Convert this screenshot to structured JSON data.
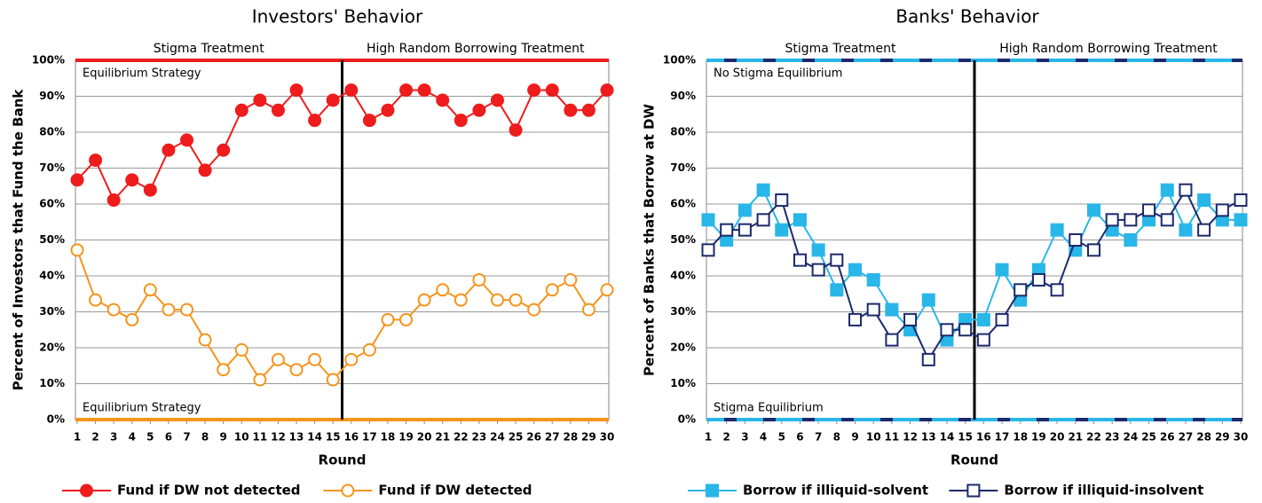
{
  "chart_data": [
    {
      "type": "line",
      "title": "Investors' Behavior",
      "x_label": "Round",
      "y_label": "Percent of Investors that Fund the Bank",
      "treatments": [
        "Stigma Treatment",
        "High Random Borrowing Treatment"
      ],
      "equilibria": [
        {
          "label": "Equilibrium Strategy",
          "value": 100,
          "color": "#ee1c1c"
        },
        {
          "label": "Equilibrium Strategy",
          "value": 0,
          "color": "#f7941d"
        }
      ],
      "x": [
        1,
        2,
        3,
        4,
        5,
        6,
        7,
        8,
        9,
        10,
        11,
        12,
        13,
        14,
        15,
        16,
        17,
        18,
        19,
        20,
        21,
        22,
        23,
        24,
        25,
        26,
        27,
        28,
        29,
        30
      ],
      "xlim": [
        1,
        30
      ],
      "ylim": [
        0,
        100
      ],
      "yticks": [
        {
          "value": 0,
          "label": "0%"
        },
        {
          "value": 10,
          "label": "10%"
        },
        {
          "value": 20,
          "label": "20%"
        },
        {
          "value": 30,
          "label": "30%"
        },
        {
          "value": 40,
          "label": "40%"
        },
        {
          "value": 50,
          "label": "50%"
        },
        {
          "value": 60,
          "label": "60%"
        },
        {
          "value": 70,
          "label": "70%"
        },
        {
          "value": 80,
          "label": "80%"
        },
        {
          "value": 90,
          "label": "90%"
        },
        {
          "value": 100,
          "label": "100%"
        }
      ],
      "grid": true,
      "series": [
        {
          "name": "Fund if DW not detected",
          "color": "#ee1c1c",
          "marker": "circle",
          "filled": true,
          "values": [
            66.7,
            72.2,
            61.1,
            66.7,
            63.9,
            75,
            77.8,
            69.4,
            75,
            86.1,
            88.9,
            86.1,
            91.7,
            83.3,
            88.9,
            91.7,
            83.3,
            86.1,
            91.7,
            91.7,
            88.9,
            83.3,
            86.1,
            88.9,
            80.6,
            91.7,
            91.7,
            86.1,
            86.1,
            91.7
          ]
        },
        {
          "name": "Fund if DW detected",
          "color": "#f7941d",
          "marker": "circle",
          "filled": false,
          "values": [
            47.2,
            33.3,
            30.6,
            27.8,
            36.1,
            30.6,
            30.6,
            22.2,
            13.9,
            19.4,
            11.1,
            16.7,
            13.9,
            16.7,
            11.1,
            16.7,
            19.4,
            27.8,
            27.8,
            33.3,
            36.1,
            33.3,
            38.9,
            33.3,
            33.3,
            30.6,
            36.1,
            38.9,
            30.6,
            36.1
          ]
        }
      ]
    },
    {
      "type": "line",
      "title": "Banks' Behavior",
      "x_label": "Round",
      "y_label": "Percent of Banks that Borrow at DW",
      "treatments": [
        "Stigma Treatment",
        "High Random Borrowing Treatment"
      ],
      "equilibria": [
        {
          "label": "No Stigma  Equilibrium",
          "value": 100,
          "color": "#29b6e8",
          "dash_color": "#1b2a6b"
        },
        {
          "label": "Stigma Equilibrium",
          "value": 0,
          "color": "#29b6e8",
          "dash_color": "#1b2a6b"
        }
      ],
      "x": [
        1,
        2,
        3,
        4,
        5,
        6,
        7,
        8,
        9,
        10,
        11,
        12,
        13,
        14,
        15,
        16,
        17,
        18,
        19,
        20,
        21,
        22,
        23,
        24,
        25,
        26,
        27,
        28,
        29,
        30
      ],
      "xlim": [
        1,
        30
      ],
      "ylim": [
        0,
        100
      ],
      "yticks": [
        {
          "value": 0,
          "label": "0%"
        },
        {
          "value": 10,
          "label": "10%"
        },
        {
          "value": 20,
          "label": "20%"
        },
        {
          "value": 30,
          "label": "30%"
        },
        {
          "value": 40,
          "label": "40%"
        },
        {
          "value": 50,
          "label": "50%"
        },
        {
          "value": 60,
          "label": "60%"
        },
        {
          "value": 70,
          "label": "70%"
        },
        {
          "value": 80,
          "label": "80%"
        },
        {
          "value": 90,
          "label": "90%"
        },
        {
          "value": 100,
          "label": "100%"
        }
      ],
      "grid": true,
      "series": [
        {
          "name": "Borrow if illiquid-solvent",
          "color": "#29b6e8",
          "marker": "square",
          "filled": true,
          "values": [
            55.6,
            50,
            58.3,
            63.9,
            52.8,
            55.6,
            47.2,
            36.1,
            41.7,
            38.9,
            30.6,
            25,
            33.3,
            22.2,
            27.8,
            27.8,
            41.7,
            33.3,
            41.7,
            52.8,
            47.2,
            58.3,
            52.8,
            50,
            55.6,
            63.9,
            52.8,
            61.1,
            55.6,
            55.6
          ]
        },
        {
          "name": "Borrow if illiquid-insolvent",
          "color": "#1b2a6b",
          "marker": "square",
          "filled": false,
          "values": [
            47.2,
            52.8,
            52.8,
            55.6,
            61.1,
            44.4,
            41.7,
            44.4,
            27.8,
            30.6,
            22.2,
            27.8,
            16.7,
            25,
            25,
            22.2,
            27.8,
            36.1,
            38.9,
            36.1,
            50,
            47.2,
            55.6,
            55.6,
            58.3,
            55.6,
            63.9,
            52.8,
            58.3,
            61.1
          ]
        }
      ]
    }
  ]
}
